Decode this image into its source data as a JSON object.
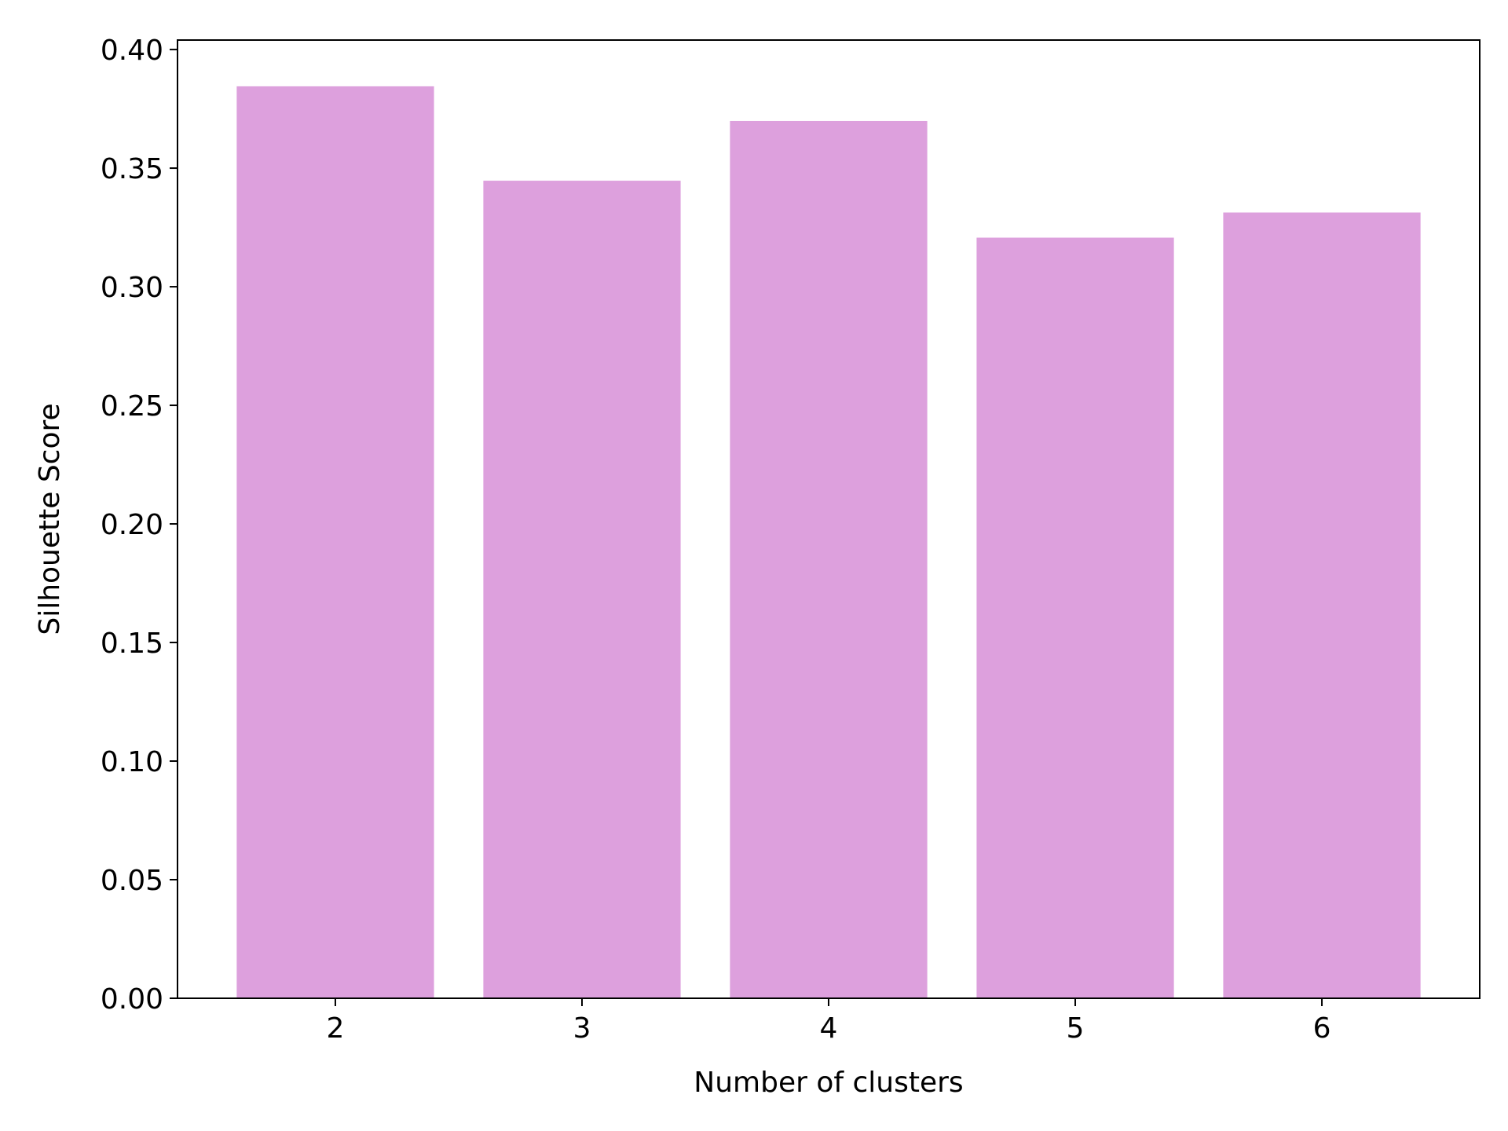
{
  "chart_data": {
    "type": "bar",
    "title": "",
    "xlabel": "Number of clusters",
    "ylabel": "Silhouette Score",
    "categories": [
      "2",
      "3",
      "4",
      "5",
      "6"
    ],
    "values": [
      0.3845,
      0.3447,
      0.3699,
      0.3207,
      0.3313
    ],
    "ylim": [
      0.0,
      0.404
    ],
    "xlim": [
      1.36,
      6.64
    ],
    "bar_width": 0.8,
    "y_ticks": [
      "0.00",
      "0.05",
      "0.10",
      "0.15",
      "0.20",
      "0.25",
      "0.30",
      "0.35",
      "0.40"
    ],
    "grid": false,
    "legend": "none",
    "colors": {
      "bar": "#dda0dd",
      "axes": "#000000",
      "background": "#ffffff"
    }
  }
}
